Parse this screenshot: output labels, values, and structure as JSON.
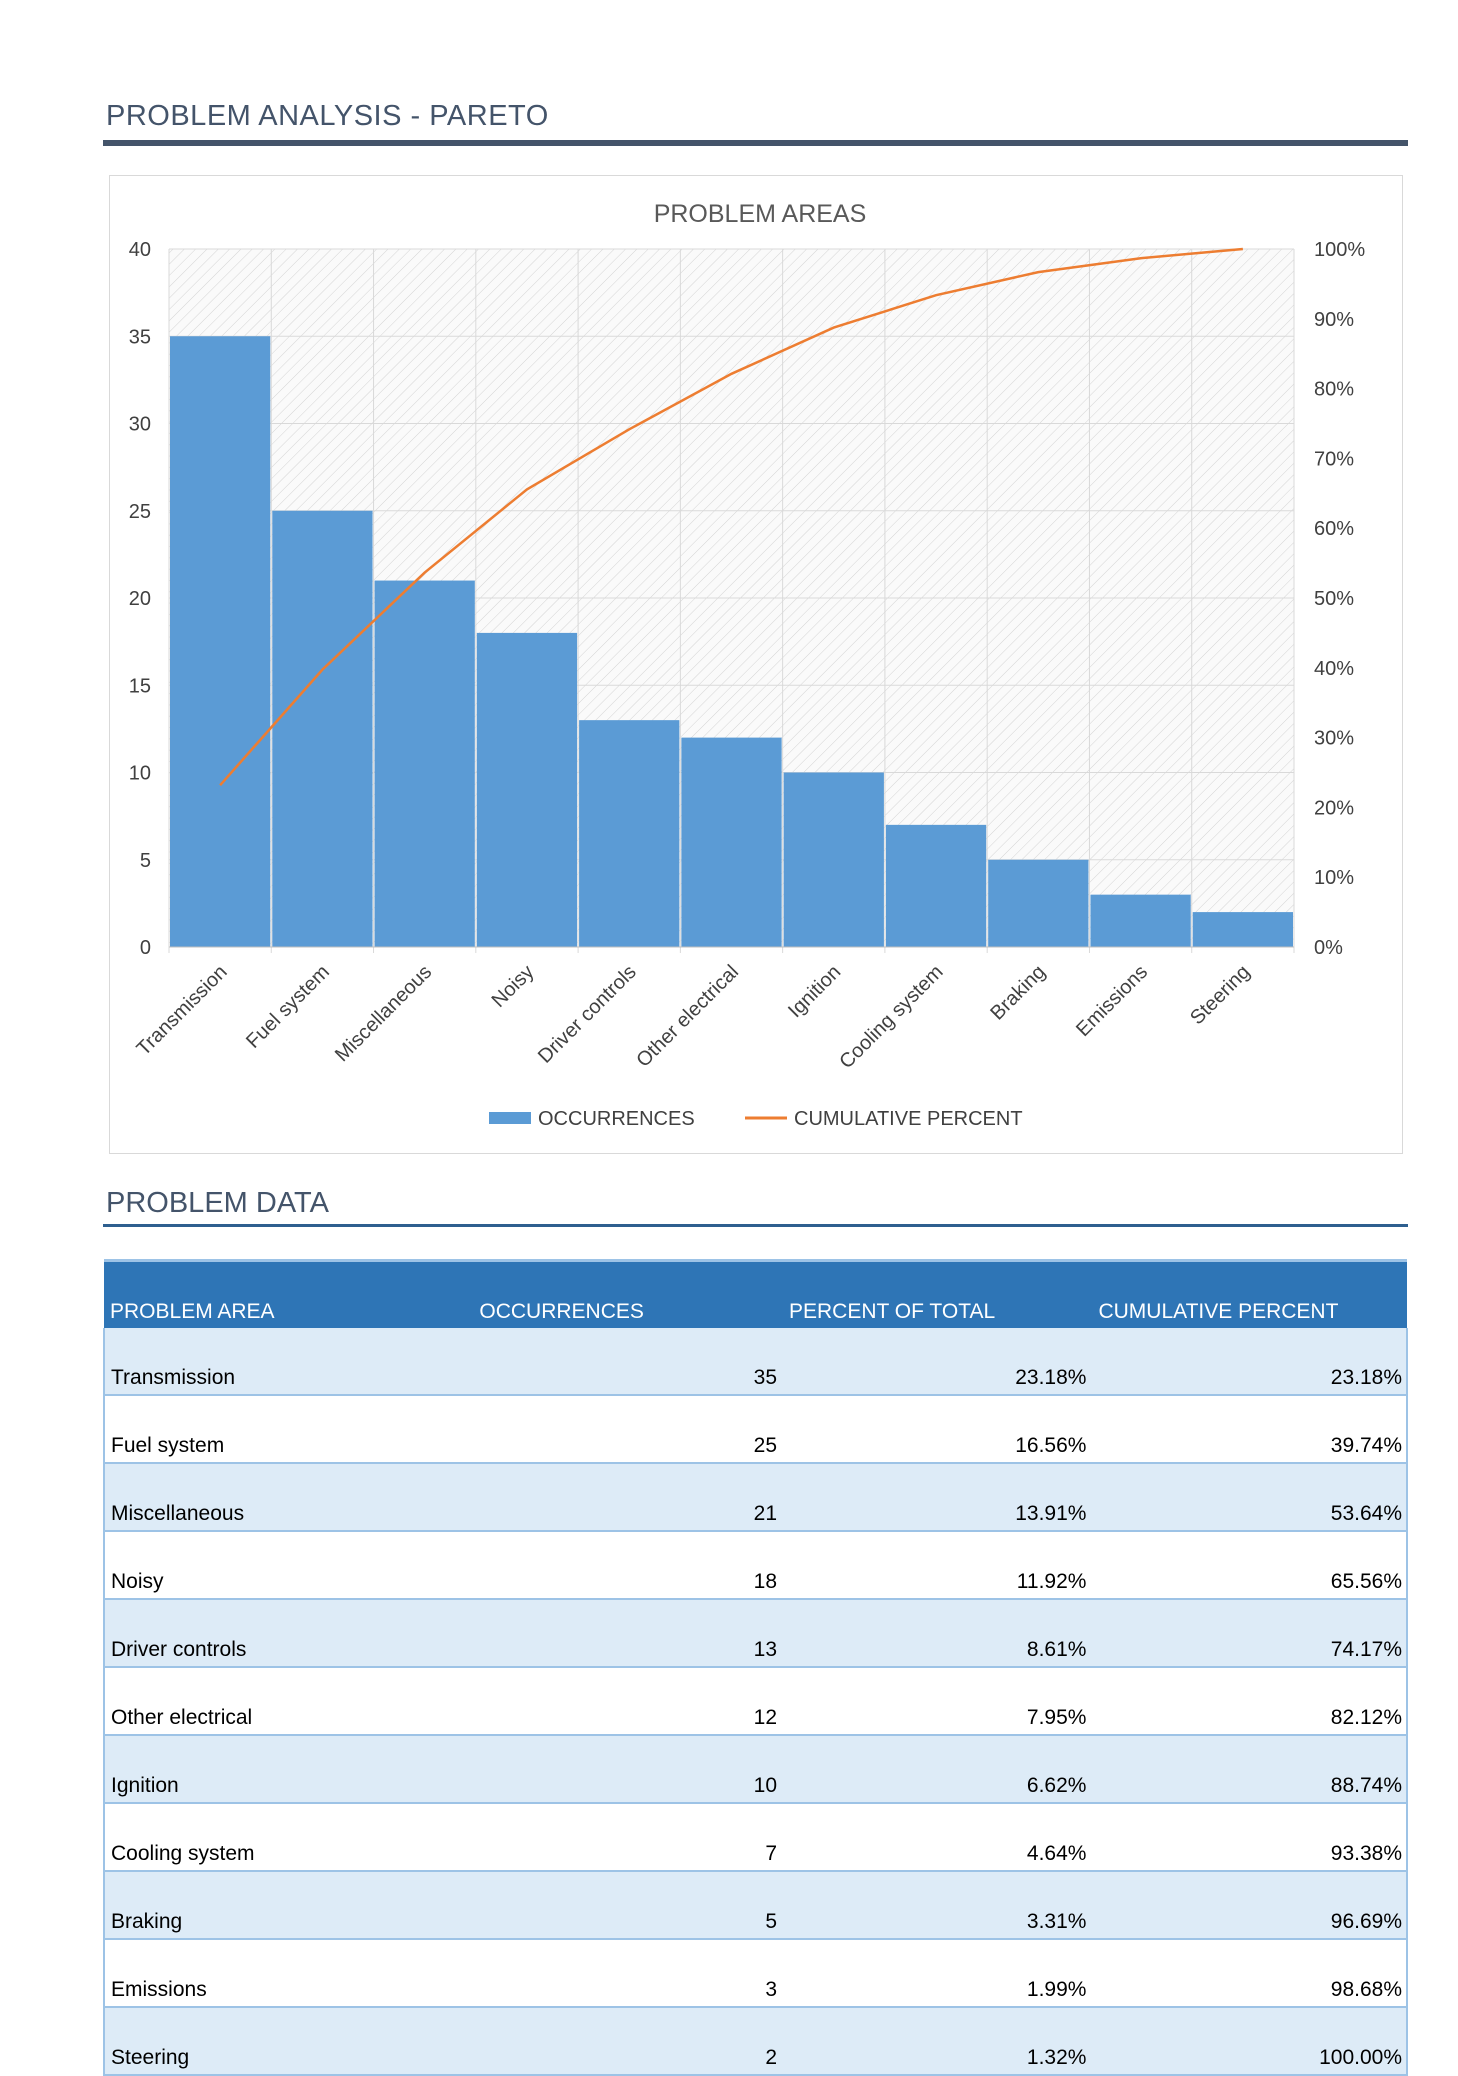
{
  "page_title": "PROBLEM ANALYSIS - PARETO",
  "data_title": "PROBLEM DATA",
  "colors": {
    "bar": "#5b9bd5",
    "line": "#ed7d31",
    "header": "#2e75b6",
    "heading": "#44546a"
  },
  "chart_data": {
    "type": "bar",
    "title": "PROBLEM AREAS",
    "categories": [
      "Transmission",
      "Fuel system",
      "Miscellaneous",
      "Noisy",
      "Driver controls",
      "Other electrical",
      "Ignition",
      "Cooling system",
      "Braking",
      "Emissions",
      "Steering"
    ],
    "series": [
      {
        "name": "OCCURRENCES",
        "type": "bar",
        "axis": "left",
        "values": [
          35,
          25,
          21,
          18,
          13,
          12,
          10,
          7,
          5,
          3,
          2
        ]
      },
      {
        "name": "CUMULATIVE PERCENT",
        "type": "line",
        "axis": "right",
        "values": [
          23.18,
          39.74,
          53.64,
          65.56,
          74.17,
          82.12,
          88.74,
          93.38,
          96.69,
          98.68,
          100
        ]
      }
    ],
    "ylim": [
      0,
      40
    ],
    "y_ticks": [
      "0",
      "5",
      "10",
      "15",
      "20",
      "25",
      "30",
      "35",
      "40"
    ],
    "y2lim": [
      0,
      100
    ],
    "y2_ticks": [
      "0%",
      "10%",
      "20%",
      "30%",
      "40%",
      "50%",
      "60%",
      "70%",
      "80%",
      "90%",
      "100%"
    ],
    "grid": true,
    "legend": "bottom"
  },
  "table": {
    "headers": [
      "PROBLEM AREA",
      "OCCURRENCES",
      "PERCENT OF TOTAL",
      "CUMULATIVE PERCENT"
    ],
    "rows": [
      [
        "Transmission",
        "35",
        "23.18%",
        "23.18%"
      ],
      [
        "Fuel system",
        "25",
        "16.56%",
        "39.74%"
      ],
      [
        "Miscellaneous",
        "21",
        "13.91%",
        "53.64%"
      ],
      [
        "Noisy",
        "18",
        "11.92%",
        "65.56%"
      ],
      [
        "Driver controls",
        "13",
        "8.61%",
        "74.17%"
      ],
      [
        "Other electrical",
        "12",
        "7.95%",
        "82.12%"
      ],
      [
        "Ignition",
        "10",
        "6.62%",
        "88.74%"
      ],
      [
        "Cooling system",
        "7",
        "4.64%",
        "93.38%"
      ],
      [
        "Braking",
        "5",
        "3.31%",
        "96.69%"
      ],
      [
        "Emissions",
        "3",
        "1.99%",
        "98.68%"
      ],
      [
        "Steering",
        "2",
        "1.32%",
        "100.00%"
      ]
    ]
  }
}
